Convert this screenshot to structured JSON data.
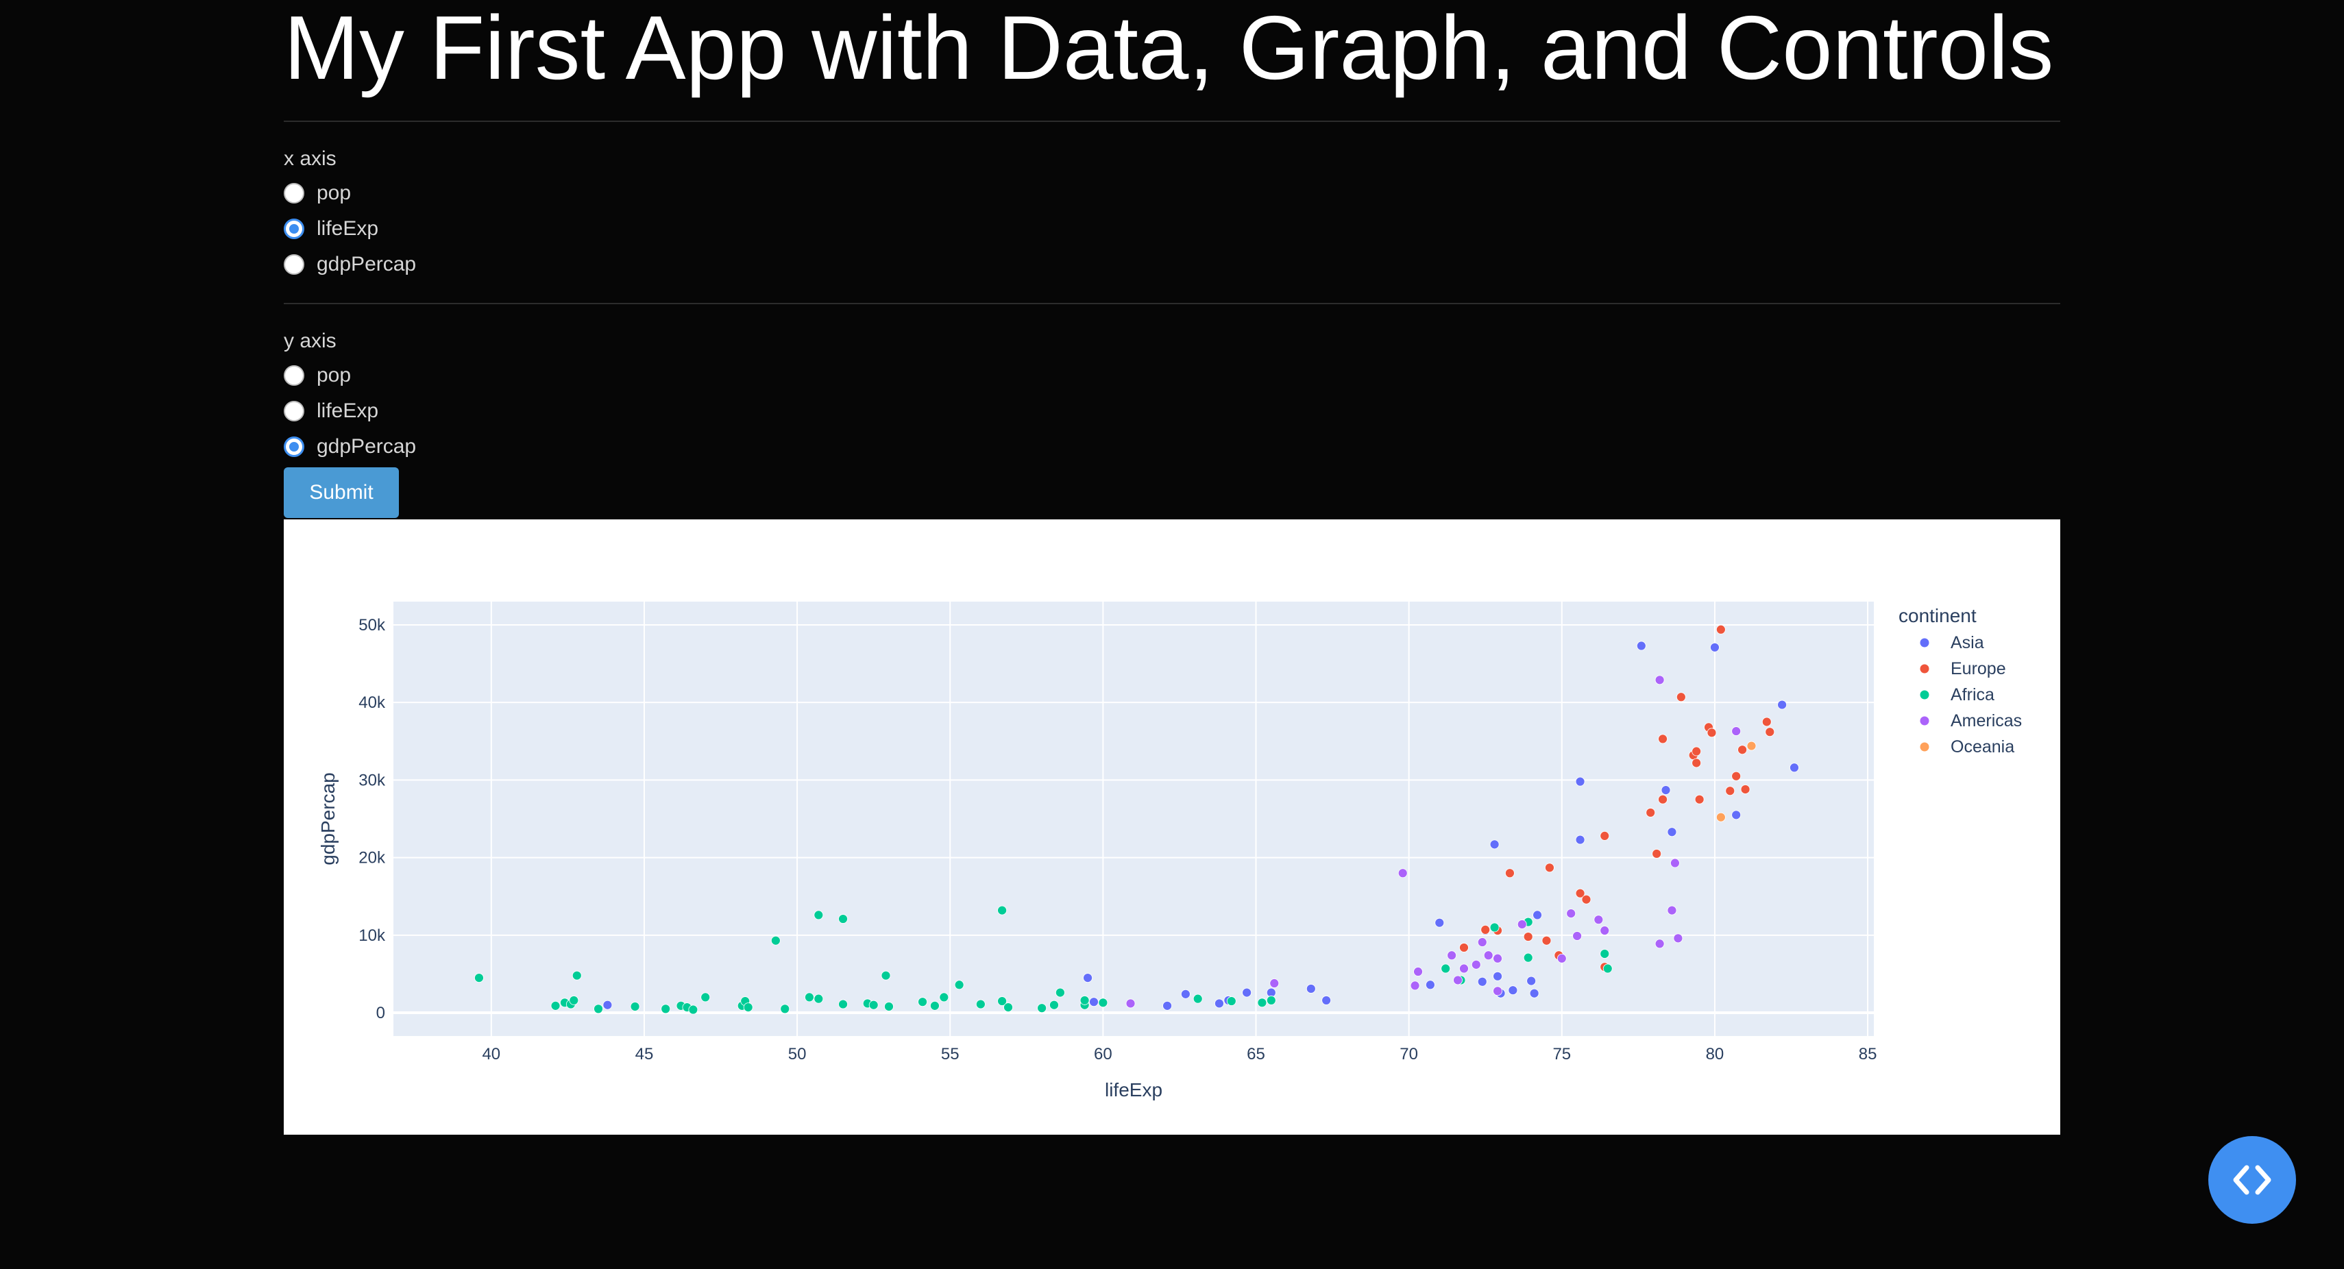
{
  "page": {
    "title": "My First App with Data, Graph, and Controls"
  },
  "controls": {
    "x_axis": {
      "label": "x axis",
      "options": [
        "pop",
        "lifeExp",
        "gdpPercap"
      ],
      "selected": "lifeExp"
    },
    "y_axis": {
      "label": "y axis",
      "options": [
        "pop",
        "lifeExp",
        "gdpPercap"
      ],
      "selected": "gdpPercap"
    },
    "submit_label": "Submit"
  },
  "fab": {
    "icon": "code-icon",
    "color": "#3f8ff1"
  },
  "chart_data": {
    "type": "scatter",
    "title": "",
    "xlabel": "lifeExp",
    "ylabel": "gdpPercap",
    "xlim": [
      36.8,
      85.2
    ],
    "ylim": [
      -3000,
      53000
    ],
    "xticks": [
      40,
      45,
      50,
      55,
      60,
      65,
      70,
      75,
      80,
      85
    ],
    "xtick_labels": [
      "40",
      "45",
      "50",
      "55",
      "60",
      "65",
      "70",
      "75",
      "80",
      "85"
    ],
    "yticks": [
      0,
      10000,
      20000,
      30000,
      40000,
      50000
    ],
    "ytick_labels": [
      "0",
      "10k",
      "20k",
      "30k",
      "40k",
      "50k"
    ],
    "grid": true,
    "plot_background": "#e5ecf6",
    "legend": {
      "title": "continent",
      "placement": "right"
    },
    "series": [
      {
        "name": "Asia",
        "color": "#636efa",
        "points": [
          [
            43.8,
            1000
          ],
          [
            59.5,
            4500
          ],
          [
            59.7,
            1400
          ],
          [
            62.1,
            900
          ],
          [
            62.7,
            2400
          ],
          [
            63.8,
            1200
          ],
          [
            64.1,
            1600
          ],
          [
            64.7,
            2600
          ],
          [
            65.5,
            2600
          ],
          [
            66.8,
            3100
          ],
          [
            67.3,
            1600
          ],
          [
            70.7,
            3600
          ],
          [
            71.0,
            11600
          ],
          [
            72.4,
            4000
          ],
          [
            72.5,
            10600
          ],
          [
            72.8,
            21700
          ],
          [
            72.9,
            4700
          ],
          [
            73.0,
            2500
          ],
          [
            73.4,
            2900
          ],
          [
            74.0,
            4100
          ],
          [
            74.1,
            2500
          ],
          [
            74.2,
            12600
          ],
          [
            75.6,
            29800
          ],
          [
            75.6,
            22300
          ],
          [
            77.6,
            47300
          ],
          [
            78.4,
            28700
          ],
          [
            78.6,
            23300
          ],
          [
            80.0,
            47100
          ],
          [
            80.7,
            25500
          ],
          [
            82.2,
            39700
          ],
          [
            82.6,
            31600
          ]
        ]
      },
      {
        "name": "Europe",
        "color": "#ef553b",
        "points": [
          [
            71.8,
            8400
          ],
          [
            72.5,
            10700
          ],
          [
            72.9,
            10600
          ],
          [
            73.3,
            18000
          ],
          [
            73.9,
            9800
          ],
          [
            74.5,
            9300
          ],
          [
            74.6,
            18700
          ],
          [
            74.9,
            7400
          ],
          [
            75.6,
            15400
          ],
          [
            75.8,
            14600
          ],
          [
            76.4,
            5900
          ],
          [
            76.4,
            22800
          ],
          [
            77.9,
            25800
          ],
          [
            78.1,
            20500
          ],
          [
            78.3,
            35300
          ],
          [
            78.3,
            27500
          ],
          [
            78.9,
            40700
          ],
          [
            79.3,
            33200
          ],
          [
            79.4,
            32200
          ],
          [
            79.4,
            33700
          ],
          [
            79.5,
            27500
          ],
          [
            79.8,
            36800
          ],
          [
            79.9,
            36100
          ],
          [
            80.2,
            49400
          ],
          [
            80.5,
            28600
          ],
          [
            80.7,
            30500
          ],
          [
            80.9,
            33900
          ],
          [
            81.0,
            28800
          ],
          [
            81.7,
            37500
          ],
          [
            81.8,
            36200
          ]
        ]
      },
      {
        "name": "Africa",
        "color": "#00cc96",
        "points": [
          [
            39.6,
            4500
          ],
          [
            42.1,
            900
          ],
          [
            42.4,
            1300
          ],
          [
            42.6,
            1100
          ],
          [
            42.7,
            1600
          ],
          [
            42.8,
            4800
          ],
          [
            43.5,
            500
          ],
          [
            44.7,
            800
          ],
          [
            45.7,
            500
          ],
          [
            46.2,
            900
          ],
          [
            46.4,
            700
          ],
          [
            46.6,
            400
          ],
          [
            47.0,
            2000
          ],
          [
            48.2,
            900
          ],
          [
            48.3,
            1500
          ],
          [
            48.4,
            700
          ],
          [
            49.3,
            9300
          ],
          [
            49.6,
            500
          ],
          [
            50.4,
            2000
          ],
          [
            50.7,
            1800
          ],
          [
            50.7,
            12600
          ],
          [
            51.5,
            1100
          ],
          [
            51.5,
            12100
          ],
          [
            52.3,
            1200
          ],
          [
            52.5,
            1000
          ],
          [
            52.9,
            4800
          ],
          [
            53.0,
            800
          ],
          [
            54.1,
            1400
          ],
          [
            54.5,
            900
          ],
          [
            54.8,
            2000
          ],
          [
            55.3,
            3600
          ],
          [
            56.0,
            1100
          ],
          [
            56.7,
            1500
          ],
          [
            56.7,
            13200
          ],
          [
            56.9,
            700
          ],
          [
            58.0,
            600
          ],
          [
            58.4,
            1000
          ],
          [
            58.6,
            2600
          ],
          [
            59.4,
            1000
          ],
          [
            59.4,
            1600
          ],
          [
            60.0,
            1300
          ],
          [
            63.1,
            1800
          ],
          [
            64.2,
            1500
          ],
          [
            65.2,
            1300
          ],
          [
            65.5,
            1600
          ],
          [
            71.2,
            5700
          ],
          [
            71.7,
            4200
          ],
          [
            72.8,
            11000
          ],
          [
            73.9,
            7100
          ],
          [
            73.9,
            11700
          ],
          [
            76.4,
            7600
          ],
          [
            76.5,
            5700
          ]
        ]
      },
      {
        "name": "Americas",
        "color": "#ab63fa",
        "points": [
          [
            60.9,
            1200
          ],
          [
            65.6,
            3800
          ],
          [
            69.8,
            18000
          ],
          [
            70.2,
            3500
          ],
          [
            70.3,
            5300
          ],
          [
            71.4,
            7400
          ],
          [
            71.6,
            4200
          ],
          [
            71.8,
            5700
          ],
          [
            72.2,
            6200
          ],
          [
            72.4,
            9100
          ],
          [
            72.6,
            7400
          ],
          [
            72.9,
            7000
          ],
          [
            72.9,
            2800
          ],
          [
            73.7,
            11400
          ],
          [
            75.0,
            7000
          ],
          [
            75.3,
            12800
          ],
          [
            75.5,
            9900
          ],
          [
            76.2,
            12000
          ],
          [
            76.4,
            10600
          ],
          [
            78.2,
            8900
          ],
          [
            78.2,
            42900
          ],
          [
            78.6,
            13200
          ],
          [
            78.7,
            19300
          ],
          [
            78.8,
            9600
          ],
          [
            80.7,
            36300
          ]
        ]
      },
      {
        "name": "Oceania",
        "color": "#ffa15a",
        "points": [
          [
            80.2,
            25200
          ],
          [
            81.2,
            34400
          ]
        ]
      }
    ]
  }
}
